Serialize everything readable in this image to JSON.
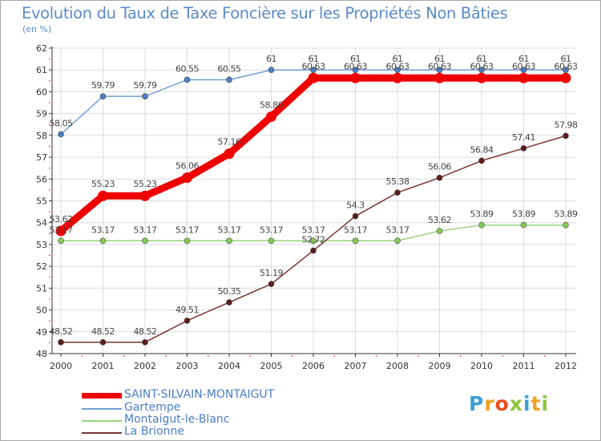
{
  "chart_data": {
    "type": "line",
    "title": "Evolution du Taux de Taxe Foncière sur les Propriétés Non Bâties",
    "ylabel": "(en %)",
    "xlabel": "",
    "categories": [
      "2000",
      "2001",
      "2002",
      "2003",
      "2004",
      "2005",
      "2006",
      "2007",
      "2008",
      "2009",
      "2010",
      "2011",
      "2012"
    ],
    "ylim": [
      48,
      62
    ],
    "yticks": [
      48,
      49,
      50,
      51,
      52,
      53,
      54,
      55,
      56,
      57,
      58,
      59,
      60,
      61,
      62
    ],
    "grid": true,
    "legend_position": "bottom-left",
    "series": [
      {
        "name": "SAINT-SILVAIN-MONTAIGUT",
        "color": "#ee0000",
        "marker": "#ee0000",
        "bold": true,
        "values": [
          53.62,
          55.23,
          55.23,
          56.06,
          57.16,
          58.86,
          60.63,
          60.63,
          60.63,
          60.63,
          60.63,
          60.63,
          60.63
        ],
        "labels": [
          "53.62",
          "55.23",
          "55.23",
          "56.06",
          "57.16",
          "58.86",
          "60.63",
          "60.63",
          "60.63",
          "60.63",
          "60.63",
          "60.63",
          "60.63"
        ]
      },
      {
        "name": "Gartempe",
        "color": "#6f9dd2",
        "marker": "#4a80c4",
        "values": [
          58.05,
          59.79,
          59.79,
          60.55,
          60.55,
          61,
          61,
          61,
          61,
          61,
          61,
          61,
          61
        ],
        "labels": [
          "58.05",
          "59.79",
          "59.79",
          "60.55",
          "60.55",
          "61",
          "61",
          "61",
          "61",
          "61",
          "61",
          "61",
          "61"
        ]
      },
      {
        "name": "Montaigut-le-Blanc",
        "color": "#99d47a",
        "marker": "#88cc55",
        "values": [
          53.17,
          53.17,
          53.17,
          53.17,
          53.17,
          53.17,
          53.17,
          53.17,
          53.17,
          53.62,
          53.89,
          53.89,
          53.89
        ],
        "labels": [
          "53.17",
          "53.17",
          "53.17",
          "53.17",
          "53.17",
          "53.17",
          "53.17",
          "53.17",
          "53.17",
          "53.62",
          "53.89",
          "53.89",
          "53.89"
        ]
      },
      {
        "name": "La Brionne",
        "color": "#7a3535",
        "marker": "#5c1c1c",
        "values": [
          48.52,
          48.52,
          48.52,
          49.51,
          50.35,
          51.19,
          52.72,
          54.3,
          55.38,
          56.06,
          56.84,
          57.41,
          57.98
        ],
        "labels": [
          "48.52",
          "48.52",
          "48.52",
          "49.51",
          "50.35",
          "51.19",
          "52.72",
          "54.3",
          "55.38",
          "56.06",
          "56.84",
          "57.41",
          "57.98"
        ]
      }
    ]
  },
  "brand": {
    "letters": [
      "P",
      "r",
      "o",
      "x",
      "i",
      "t",
      "i"
    ]
  }
}
